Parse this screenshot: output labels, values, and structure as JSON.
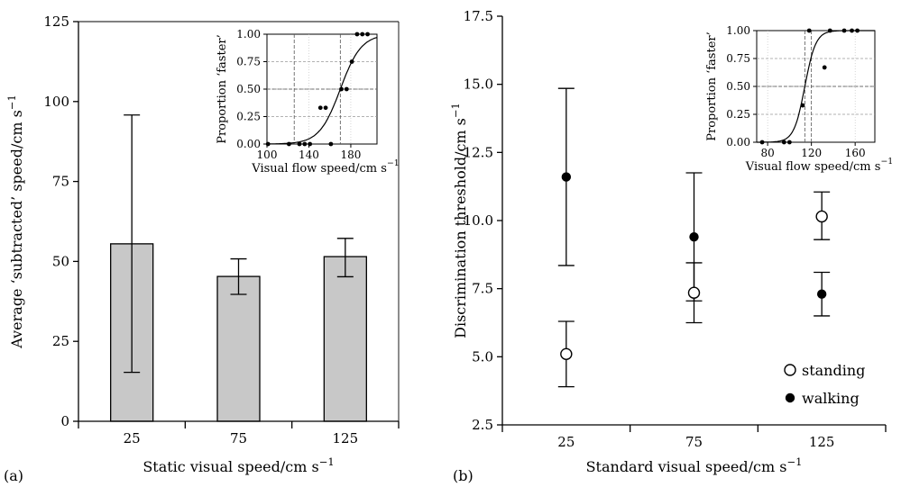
{
  "chart_data": [
    {
      "panel": "(a)",
      "type": "bar",
      "categories": [
        "25",
        "75",
        "125"
      ],
      "values": [
        55.5,
        45.3,
        51.5
      ],
      "errors_lower": [
        15.3,
        39.7,
        45.2
      ],
      "errors_upper": [
        95.8,
        50.8,
        57.2
      ],
      "ylim": [
        0,
        125
      ],
      "yticks": [
        "0",
        "25",
        "50",
        "75",
        "100",
        "125"
      ],
      "xlabel": "Static visual speed/cm s",
      "xlabel_sup": "−1",
      "ylabel": "Average ‘subtracted’ speed/cm s",
      "ylabel_sup": "−1",
      "bar_color": "#c8c8c8",
      "inset": {
        "type": "scatter",
        "xlim": [
          100,
          205
        ],
        "ylim": [
          0,
          1.0
        ],
        "xticks": [
          "100",
          "140",
          "180"
        ],
        "yticks": [
          "0.00",
          "0.25",
          "0.50",
          "0.75",
          "1.00"
        ],
        "xlabel": "Visual flow speed/cm s",
        "xlabel_sup": "−1",
        "ylabel": "Proportion ‘faster’",
        "points": [
          [
            101,
            0
          ],
          [
            121,
            0
          ],
          [
            131,
            0
          ],
          [
            136,
            0
          ],
          [
            141,
            0
          ],
          [
            161,
            0
          ],
          [
            151,
            0.33
          ],
          [
            156,
            0.33
          ],
          [
            171,
            0.5
          ],
          [
            176,
            0.5
          ],
          [
            181,
            0.75
          ],
          [
            186,
            1.0
          ],
          [
            191,
            1.0
          ],
          [
            196,
            1.0
          ]
        ],
        "fit": {
          "pse": 170,
          "slope": 10
        },
        "ref_vlines": [
          126,
          170
        ],
        "ref_hlines": [
          0.5
        ]
      }
    },
    {
      "panel": "(b)",
      "type": "scatter",
      "categories": [
        "25",
        "75",
        "125"
      ],
      "ylim": [
        2.5,
        17.5
      ],
      "yticks": [
        "2.5",
        "5.0",
        "7.5",
        "10.0",
        "12.5",
        "15.0",
        "17.5"
      ],
      "xlabel": "Standard visual speed/cm s",
      "xlabel_sup": "−1",
      "ylabel": "Discrimination threshold/cm s",
      "ylabel_sup": "−1",
      "legend_position": "bottom-right",
      "series": [
        {
          "name": "standing",
          "marker": "open-circle",
          "values": [
            5.1,
            7.35,
            10.15
          ],
          "errors_lower": [
            3.9,
            6.25,
            9.3
          ],
          "errors_upper": [
            6.3,
            8.45,
            11.05
          ]
        },
        {
          "name": "walking",
          "marker": "filled-circle",
          "values": [
            11.6,
            9.4,
            7.3
          ],
          "errors_lower": [
            8.35,
            7.05,
            6.5
          ],
          "errors_upper": [
            14.85,
            11.75,
            8.1
          ]
        }
      ],
      "inset": {
        "type": "scatter",
        "xlim": [
          70,
          178
        ],
        "ylim": [
          0,
          1.0
        ],
        "xticks": [
          "80",
          "120",
          "160"
        ],
        "yticks": [
          "0.00",
          "0.25",
          "0.50",
          "0.75",
          "1.00"
        ],
        "xlabel": "Visual flow speed/cm s",
        "xlabel_sup": "−1",
        "ylabel": "Proportion ‘faster’",
        "points": [
          [
            75,
            0
          ],
          [
            95,
            0
          ],
          [
            100,
            0
          ],
          [
            112,
            0.33
          ],
          [
            118,
            1.0
          ],
          [
            132,
            0.67
          ],
          [
            137,
            1.0
          ],
          [
            150,
            1.0
          ],
          [
            157,
            1.0
          ],
          [
            162,
            1.0
          ]
        ],
        "fit": {
          "pse": 114,
          "slope": 5
        },
        "ref_vlines": [
          114,
          120
        ],
        "ref_hlines": [
          0.5
        ]
      }
    }
  ],
  "panel_labels": [
    "(a)",
    "(b)"
  ]
}
